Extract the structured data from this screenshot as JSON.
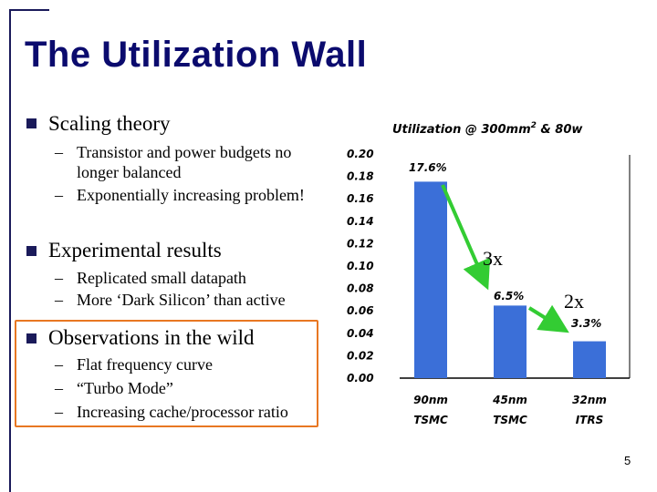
{
  "slide": {
    "title": "The Utilization Wall",
    "page_number": "5",
    "bullets": [
      {
        "text": "Scaling theory",
        "subs": [
          "Transistor and power budgets no longer balanced",
          "Exponentially increasing problem!"
        ]
      },
      {
        "text": "Experimental results",
        "subs": [
          "Replicated small datapath",
          "More ‘Dark Silicon’ than active"
        ]
      },
      {
        "text": "Observations in the wild",
        "subs": [
          "Flat frequency curve",
          "“Turbo Mode”",
          "Increasing cache/processor ratio"
        ]
      }
    ],
    "sub_dash": "–",
    "annotations": [
      "3x",
      "2x"
    ],
    "colors": {
      "title": "#0b0b6e",
      "bar": "#3b6fd8",
      "arrow": "#33cc33",
      "highlight": "#e87722"
    }
  },
  "chart_data": {
    "type": "bar",
    "title_main": "Utilization @ 300mm",
    "title_sup": "2",
    "title_tail": " & 80w",
    "categories": [
      {
        "line1": "90nm",
        "line2": "TSMC"
      },
      {
        "line1": "45nm",
        "line2": "TSMC"
      },
      {
        "line1": "32nm",
        "line2": "ITRS"
      }
    ],
    "values": [
      0.176,
      0.065,
      0.033
    ],
    "data_labels": [
      "17.6%",
      "6.5%",
      "3.3%"
    ],
    "ylim": [
      0,
      0.2
    ],
    "yticks": [
      "0.20",
      "0.18",
      "0.16",
      "0.14",
      "0.12",
      "0.10",
      "0.08",
      "0.06",
      "0.04",
      "0.02",
      "0.00"
    ],
    "grid": false
  }
}
